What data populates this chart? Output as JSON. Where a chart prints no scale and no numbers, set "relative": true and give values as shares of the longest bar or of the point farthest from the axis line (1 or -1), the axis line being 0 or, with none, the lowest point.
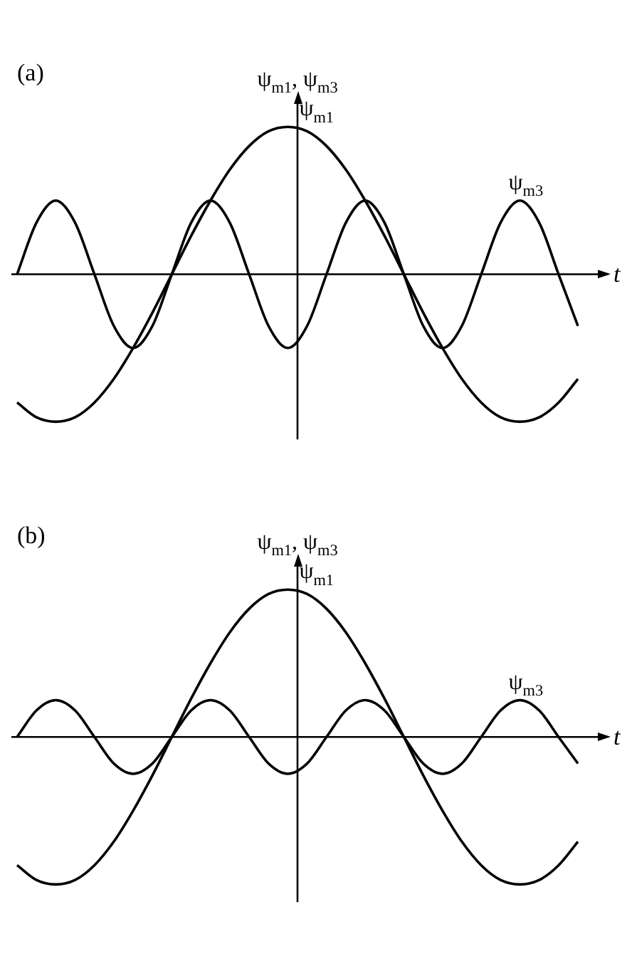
{
  "chart_data": [
    {
      "type": "line",
      "title": "(a)",
      "xlabel": "t",
      "ylabel": "ψ$_{m1}$, ψ$_{m3}$",
      "relative": true,
      "categories": [
        null,
        null,
        null,
        null,
        null,
        null,
        null,
        null,
        null,
        null,
        null,
        null,
        null,
        null,
        null,
        null,
        null,
        null,
        null,
        null,
        null,
        null,
        null,
        null,
        null,
        null,
        null,
        null,
        null,
        null
      ],
      "series": [
        {
          "name": "ψ$_{m1}$",
          "color": "#000000",
          "values": [
            -0.87,
            -0.97,
            -1,
            -0.97,
            -0.87,
            -0.71,
            -0.5,
            -0.26,
            0,
            0.26,
            0.5,
            0.71,
            0.87,
            0.97,
            1,
            0.97,
            0.87,
            0.71,
            0.5,
            0.26,
            0,
            -0.26,
            -0.5,
            -0.71,
            -0.87,
            -0.97,
            -1,
            -0.97,
            -0.87,
            -0.71
          ]
        },
        {
          "name": "ψ$_{m3}$",
          "color": "#000000",
          "values": [
            0,
            0.35,
            0.5,
            0.35,
            0,
            -0.35,
            -0.5,
            -0.35,
            0,
            0.35,
            0.5,
            0.35,
            0,
            -0.35,
            -0.5,
            -0.35,
            0,
            0.35,
            0.5,
            0.35,
            0,
            -0.35,
            -0.5,
            -0.35,
            0,
            0.35,
            0.5,
            0.35,
            0,
            -0.35
          ]
        }
      ]
    },
    {
      "type": "line",
      "title": "(b)",
      "xlabel": "t",
      "ylabel": "ψ$_{m1}$, ψ$_{m3}$",
      "relative": true,
      "categories": [
        null,
        null,
        null,
        null,
        null,
        null,
        null,
        null,
        null,
        null,
        null,
        null,
        null,
        null,
        null,
        null,
        null,
        null,
        null,
        null,
        null,
        null,
        null,
        null,
        null,
        null,
        null,
        null,
        null,
        null
      ],
      "series": [
        {
          "name": "ψ$_{m1}$",
          "color": "#000000",
          "values": [
            -0.87,
            -0.97,
            -1,
            -0.97,
            -0.87,
            -0.71,
            -0.5,
            -0.26,
            0,
            0.26,
            0.5,
            0.71,
            0.87,
            0.97,
            1,
            0.97,
            0.87,
            0.71,
            0.5,
            0.26,
            0,
            -0.26,
            -0.5,
            -0.71,
            -0.87,
            -0.97,
            -1,
            -0.97,
            -0.87,
            -0.71
          ]
        },
        {
          "name": "ψ$_{m3}$",
          "color": "#000000",
          "values": [
            0,
            0.18,
            0.25,
            0.18,
            0,
            -0.18,
            -0.25,
            -0.18,
            0,
            0.18,
            0.25,
            0.18,
            0,
            -0.18,
            -0.25,
            -0.18,
            0,
            0.18,
            0.25,
            0.18,
            0,
            -0.18,
            -0.25,
            -0.18,
            0,
            0.18,
            0.25,
            0.18,
            0,
            -0.18
          ]
        }
      ]
    }
  ]
}
